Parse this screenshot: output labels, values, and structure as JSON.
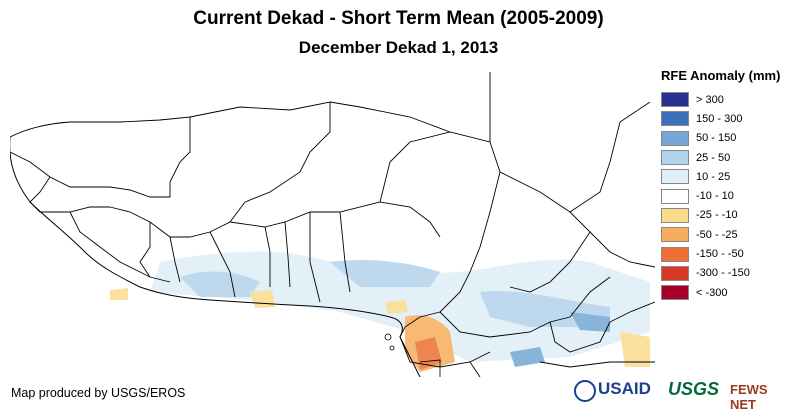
{
  "title": "Current Dekad - Short Term Mean (2005-2009)",
  "subtitle": "December Dekad 1, 2013",
  "legend": {
    "title": "RFE Anomaly (mm)",
    "items": [
      {
        "label": "> 300",
        "color": "#27318f"
      },
      {
        "label": "150 - 300",
        "color": "#3d6fbb"
      },
      {
        "label": "50 - 150",
        "color": "#74a7d4"
      },
      {
        "label": "25 - 50",
        "color": "#b3d3ea"
      },
      {
        "label": "10 - 25",
        "color": "#dfeef7"
      },
      {
        "label": "-10 - 10",
        "color": "#ffffff"
      },
      {
        "label": "-25 - -10",
        "color": "#fbdb8c"
      },
      {
        "label": "-50 - -25",
        "color": "#f6ad5c"
      },
      {
        "label": "-150 - -50",
        "color": "#ee7037"
      },
      {
        "label": "-300 - -150",
        "color": "#d73b26"
      },
      {
        "label": "< -300",
        "color": "#a50026"
      }
    ]
  },
  "credit": "Map produced by USGS/EROS",
  "logos": {
    "usaid": "USAID",
    "usgs": "USGS",
    "fewsnet": "FEWS NET"
  }
}
